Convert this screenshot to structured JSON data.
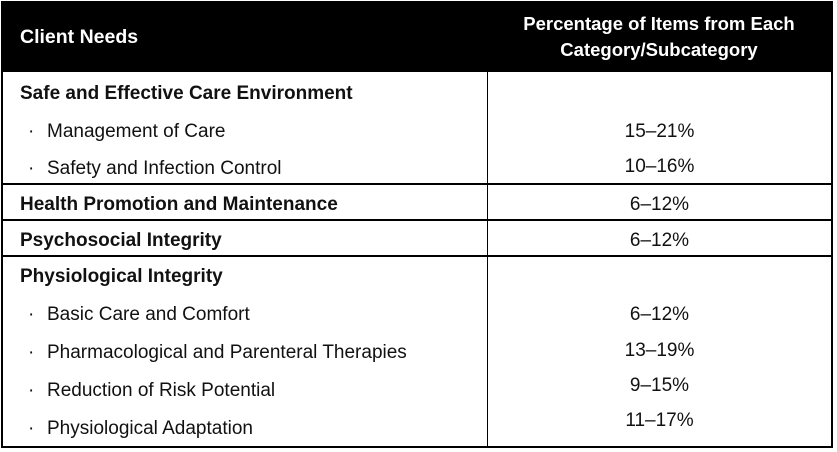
{
  "header": {
    "left": "Client Needs",
    "right_line1": "Percentage of Items from Each",
    "right_line2": "Category/Subcategory"
  },
  "categories": [
    {
      "name": "Safe and Effective Care Environment",
      "subcategories": [
        {
          "name": "Management of Care",
          "percent": "15–21%"
        },
        {
          "name": "Safety and Infection Control",
          "percent": "10–16%"
        }
      ]
    },
    {
      "name": "Health Promotion and Maintenance",
      "percent": "6–12%"
    },
    {
      "name": "Psychosocial Integrity",
      "percent": "6–12%"
    },
    {
      "name": "Physiological Integrity",
      "subcategories": [
        {
          "name": "Basic Care and Comfort",
          "percent": "6–12%"
        },
        {
          "name": "Pharmacological and Parenteral Therapies",
          "percent": "13–19%"
        },
        {
          "name": "Reduction of Risk Potential",
          "percent": "9–15%"
        },
        {
          "name": "Physiological Adaptation",
          "percent": "11–17%"
        }
      ]
    }
  ],
  "bullet_char": "·"
}
